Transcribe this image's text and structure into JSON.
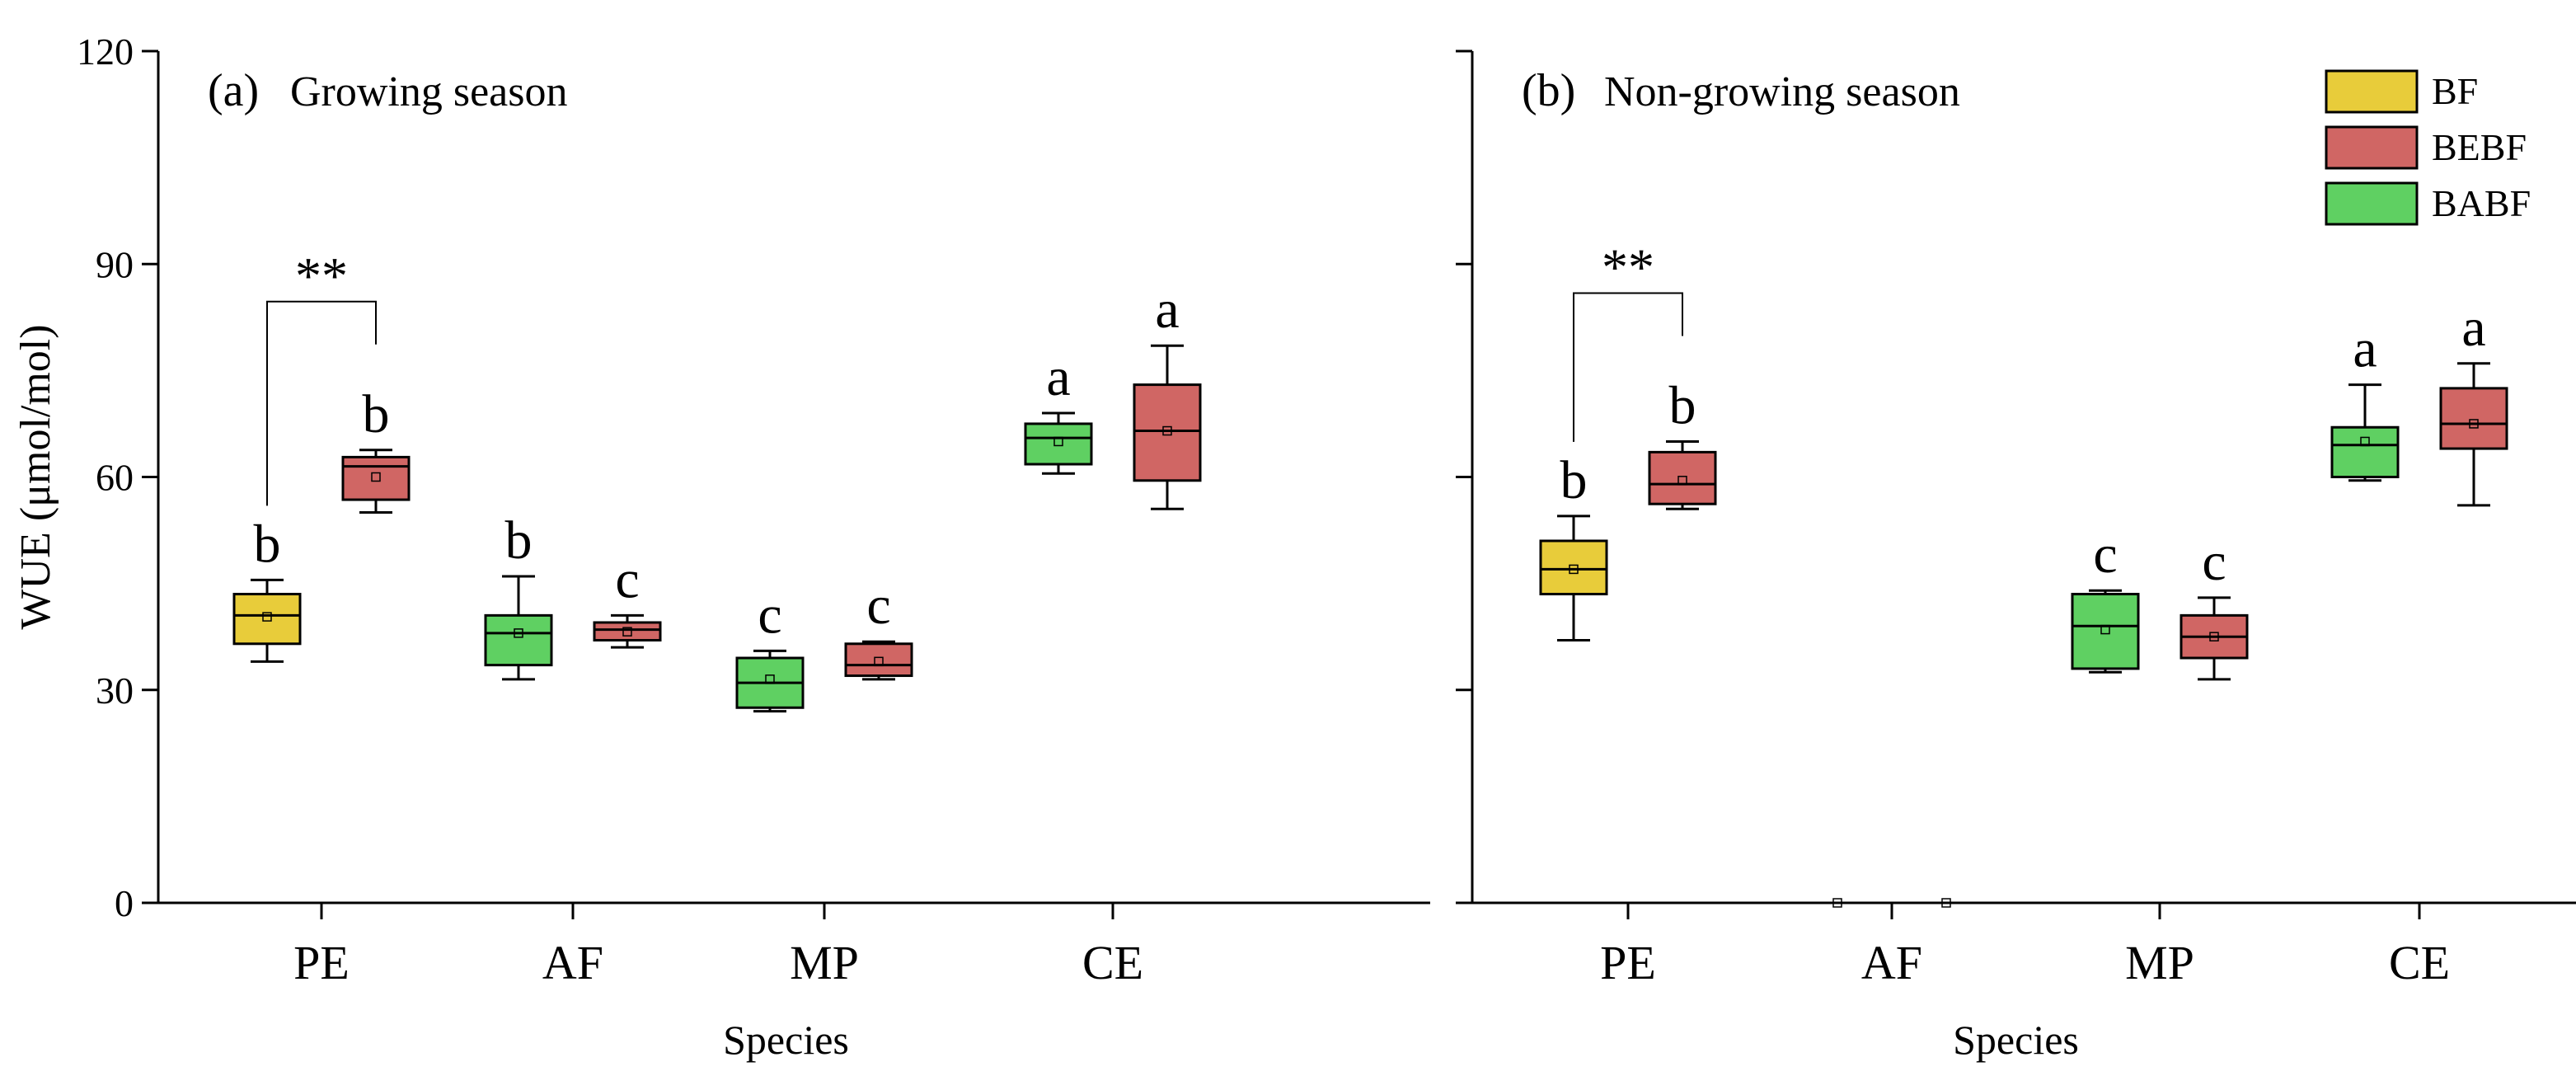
{
  "chart_data": [
    {
      "type": "box",
      "panel_label": "(a)",
      "title": "Growing season",
      "xlabel": "Species",
      "ylabel": "WUE (μmol/mol)",
      "ylim": [
        0,
        120
      ],
      "yticks": [
        0,
        30,
        60,
        90,
        120
      ],
      "categories": [
        "PE",
        "AF",
        "MP",
        "CE"
      ],
      "boxes": [
        {
          "category": "PE",
          "series": "BF",
          "min": 34,
          "q1": 36.5,
          "median": 40.5,
          "q3": 43.5,
          "max": 45.5,
          "mean": 40.3,
          "letter": "b"
        },
        {
          "category": "PE",
          "series": "BEBF",
          "min": 55,
          "q1": 56.8,
          "median": 61.5,
          "q3": 62.8,
          "max": 63.8,
          "mean": 60,
          "letter": "b"
        },
        {
          "category": "AF",
          "series": "BABF",
          "min": 31.5,
          "q1": 33.5,
          "median": 38,
          "q3": 40.5,
          "max": 46,
          "mean": 38,
          "letter": "b"
        },
        {
          "category": "AF",
          "series": "BEBF",
          "min": 36,
          "q1": 37,
          "median": 38.5,
          "q3": 39.5,
          "max": 40.5,
          "mean": 38.2,
          "letter": "c"
        },
        {
          "category": "MP",
          "series": "BABF",
          "min": 27,
          "q1": 27.5,
          "median": 31,
          "q3": 34.5,
          "max": 35.5,
          "mean": 31.5,
          "letter": "c"
        },
        {
          "category": "MP",
          "series": "BEBF",
          "min": 31.5,
          "q1": 32,
          "median": 33.5,
          "q3": 36.5,
          "max": 36.8,
          "mean": 34,
          "letter": "c"
        },
        {
          "category": "CE",
          "series": "BABF",
          "min": 60.5,
          "q1": 61.8,
          "median": 65.5,
          "q3": 67.5,
          "max": 69,
          "mean": 65,
          "letter": "a"
        },
        {
          "category": "CE",
          "series": "BEBF",
          "min": 55.5,
          "q1": 59.5,
          "median": 66.5,
          "q3": 73,
          "max": 78.5,
          "mean": 66.5,
          "letter": "a"
        }
      ],
      "significance": {
        "label": "**",
        "category": "PE"
      }
    },
    {
      "type": "box",
      "panel_label": "(b)",
      "title": "Non-growing season",
      "xlabel": "Species",
      "ylim": [
        0,
        120
      ],
      "yticks": [
        0,
        30,
        60,
        90,
        120
      ],
      "categories": [
        "PE",
        "AF",
        "MP",
        "CE"
      ],
      "boxes": [
        {
          "category": "PE",
          "series": "BF",
          "min": 37,
          "q1": 43.5,
          "median": 47,
          "q3": 51,
          "max": 54.5,
          "mean": 47,
          "letter": "b"
        },
        {
          "category": "PE",
          "series": "BEBF",
          "min": 55.5,
          "q1": 56.2,
          "median": 59,
          "q3": 63.5,
          "max": 65,
          "mean": 59.5,
          "letter": "b"
        },
        {
          "category": "AF",
          "series": "BABF",
          "mean": 0,
          "empty": true
        },
        {
          "category": "AF",
          "series": "BEBF",
          "mean": 0,
          "empty": true
        },
        {
          "category": "MP",
          "series": "BABF",
          "min": 32.5,
          "q1": 33,
          "median": 39,
          "q3": 43.5,
          "max": 44,
          "mean": 38.5,
          "letter": "c"
        },
        {
          "category": "MP",
          "series": "BEBF",
          "min": 31.5,
          "q1": 34.5,
          "median": 37.5,
          "q3": 40.5,
          "max": 43,
          "mean": 37.5,
          "letter": "c"
        },
        {
          "category": "CE",
          "series": "BABF",
          "min": 59.5,
          "q1": 60,
          "median": 64.5,
          "q3": 67,
          "max": 73,
          "mean": 65,
          "letter": "a"
        },
        {
          "category": "CE",
          "series": "BEBF",
          "min": 56,
          "q1": 64,
          "median": 67.5,
          "q3": 72.5,
          "max": 76,
          "mean": 67.5,
          "letter": "a"
        }
      ],
      "significance": {
        "label": "**",
        "category": "PE"
      }
    }
  ],
  "legend": [
    {
      "name": "BF",
      "color": "#e8cc3a"
    },
    {
      "name": "BEBF",
      "color": "#d06664"
    },
    {
      "name": "BABF",
      "color": "#5fd062"
    }
  ],
  "series_colors": {
    "BF": "#e8cc3a",
    "BEBF": "#d06664",
    "BABF": "#5fd062"
  }
}
